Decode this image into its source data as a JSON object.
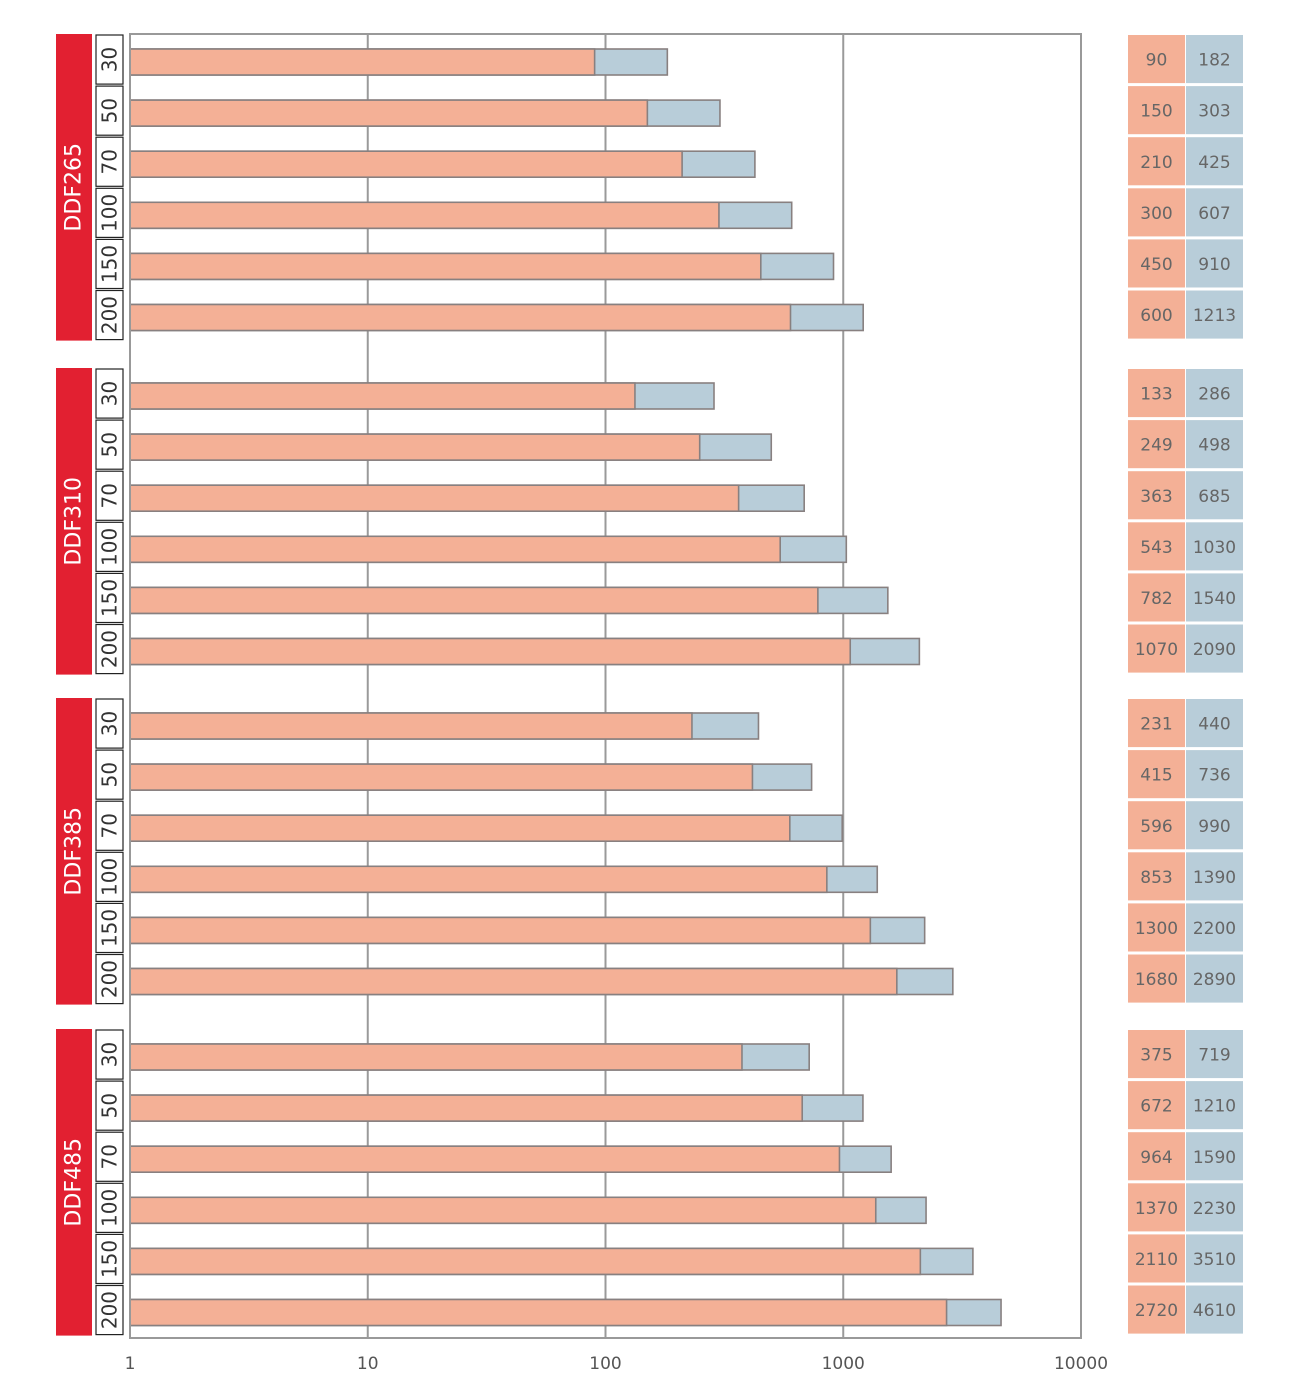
{
  "chart_data": {
    "type": "bar",
    "orientation": "horizontal",
    "stacked": true,
    "x_scale": "log",
    "xlim": [
      1,
      10000
    ],
    "x_ticks": [
      "1",
      "10",
      "100",
      "1000",
      "10000"
    ],
    "grid": true,
    "colors": {
      "series_1": "#f4b096",
      "series_2": "#b8cdd9",
      "group_band": "#e22031"
    },
    "groups": [
      {
        "name": "DDF265",
        "rows": [
          {
            "label": "30",
            "v1": 90,
            "v2": 182
          },
          {
            "label": "50",
            "v1": 150,
            "v2": 303
          },
          {
            "label": "70",
            "v1": 210,
            "v2": 425
          },
          {
            "label": "100",
            "v1": 300,
            "v2": 607
          },
          {
            "label": "150",
            "v1": 450,
            "v2": 910
          },
          {
            "label": "200",
            "v1": 600,
            "v2": 1213
          }
        ]
      },
      {
        "name": "DDF310",
        "rows": [
          {
            "label": "30",
            "v1": 133,
            "v2": 286
          },
          {
            "label": "50",
            "v1": 249,
            "v2": 498
          },
          {
            "label": "70",
            "v1": 363,
            "v2": 685
          },
          {
            "label": "100",
            "v1": 543,
            "v2": 1030
          },
          {
            "label": "150",
            "v1": 782,
            "v2": 1540
          },
          {
            "label": "200",
            "v1": 1070,
            "v2": 2090
          }
        ]
      },
      {
        "name": "DDF385",
        "rows": [
          {
            "label": "30",
            "v1": 231,
            "v2": 440
          },
          {
            "label": "50",
            "v1": 415,
            "v2": 736
          },
          {
            "label": "70",
            "v1": 596,
            "v2": 990
          },
          {
            "label": "100",
            "v1": 853,
            "v2": 1390
          },
          {
            "label": "150",
            "v1": 1300,
            "v2": 2200
          },
          {
            "label": "200",
            "v1": 1680,
            "v2": 2890
          }
        ]
      },
      {
        "name": "DDF485",
        "rows": [
          {
            "label": "30",
            "v1": 375,
            "v2": 719
          },
          {
            "label": "50",
            "v1": 672,
            "v2": 1210
          },
          {
            "label": "70",
            "v1": 964,
            "v2": 1590
          },
          {
            "label": "100",
            "v1": 1370,
            "v2": 2230
          },
          {
            "label": "150",
            "v1": 2110,
            "v2": 3510
          },
          {
            "label": "200",
            "v1": 2720,
            "v2": 4610
          }
        ]
      }
    ]
  }
}
